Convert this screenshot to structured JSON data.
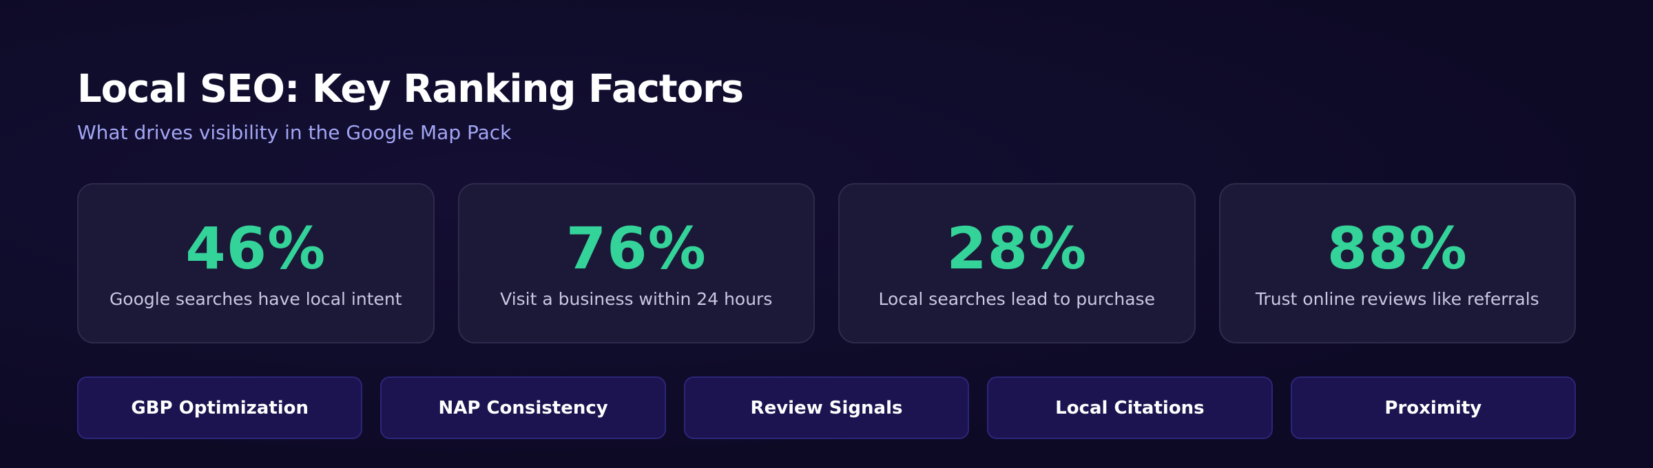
{
  "header": {
    "title": "Local SEO: Key Ranking Factors",
    "subtitle": "What drives visibility in the Google Map Pack"
  },
  "stats": [
    {
      "value": "46%",
      "label": "Google searches have local intent"
    },
    {
      "value": "76%",
      "label": "Visit a business within 24 hours"
    },
    {
      "value": "28%",
      "label": "Local searches lead to purchase"
    },
    {
      "value": "88%",
      "label": "Trust online reviews like referrals"
    }
  ],
  "factors": [
    "GBP Optimization",
    "NAP Consistency",
    "Review Signals",
    "Local Citations",
    "Proximity"
  ]
}
